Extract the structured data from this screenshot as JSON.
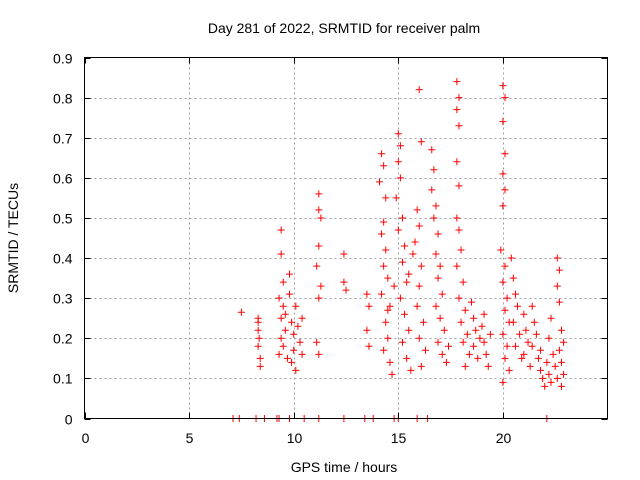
{
  "chart_data": {
    "type": "scatter",
    "title": "Day 281 of 2022, SRMTID for receiver palm",
    "xlabel": "GPS time / hours",
    "ylabel": "SRMTID / TECUs",
    "xlim": [
      0,
      25
    ],
    "ylim": [
      0,
      0.9
    ],
    "x_ticks": [
      0,
      5,
      10,
      15,
      20
    ],
    "y_ticks": [
      0,
      0.1,
      0.2,
      0.3,
      0.4,
      0.5,
      0.6,
      0.7,
      0.8,
      0.9
    ],
    "x_tick_labels": [
      "0",
      "5",
      "10",
      "15",
      "20"
    ],
    "y_tick_labels": [
      "0",
      "0.1",
      "0.2",
      "0.3",
      "0.4",
      "0.5",
      "0.6",
      "0.7",
      "0.8",
      "0.9"
    ],
    "grid": true,
    "marker": "+",
    "color": "#ff0000",
    "series": [
      {
        "name": "SRMTID",
        "points": [
          [
            7.1,
            0.0
          ],
          [
            7.4,
            0.0
          ],
          [
            7.5,
            0.265
          ],
          [
            8.2,
            0.0
          ],
          [
            8.6,
            0.0
          ],
          [
            8.3,
            0.25
          ],
          [
            8.3,
            0.22
          ],
          [
            8.3,
            0.18
          ],
          [
            8.4,
            0.15
          ],
          [
            8.35,
            0.2
          ],
          [
            8.4,
            0.13
          ],
          [
            8.3,
            0.24
          ],
          [
            9.2,
            0.0
          ],
          [
            9.3,
            0.0
          ],
          [
            9.8,
            0.0
          ],
          [
            10.5,
            0.0
          ],
          [
            11.2,
            0.0
          ],
          [
            12.4,
            0.0
          ],
          [
            13.4,
            0.0
          ],
          [
            13.8,
            0.0
          ],
          [
            14.8,
            0.0
          ],
          [
            15.0,
            0.0
          ],
          [
            15.9,
            0.0
          ],
          [
            16.4,
            0.0
          ],
          [
            22.1,
            0.0
          ],
          [
            9.4,
            0.47
          ],
          [
            9.4,
            0.41
          ],
          [
            9.5,
            0.34
          ],
          [
            9.3,
            0.3
          ],
          [
            9.5,
            0.28
          ],
          [
            9.4,
            0.25
          ],
          [
            9.6,
            0.22
          ],
          [
            9.4,
            0.2
          ],
          [
            9.5,
            0.18
          ],
          [
            9.3,
            0.16
          ],
          [
            9.7,
            0.15
          ],
          [
            9.6,
            0.26
          ],
          [
            9.8,
            0.31
          ],
          [
            9.9,
            0.24
          ],
          [
            10.0,
            0.21
          ],
          [
            10.0,
            0.17
          ],
          [
            9.9,
            0.14
          ],
          [
            10.1,
            0.12
          ],
          [
            10.2,
            0.23
          ],
          [
            10.3,
            0.19
          ],
          [
            10.1,
            0.28
          ],
          [
            9.8,
            0.36
          ],
          [
            10.4,
            0.25
          ],
          [
            10.4,
            0.16
          ],
          [
            11.2,
            0.56
          ],
          [
            11.2,
            0.52
          ],
          [
            11.3,
            0.5
          ],
          [
            11.2,
            0.43
          ],
          [
            11.1,
            0.38
          ],
          [
            11.3,
            0.33
          ],
          [
            11.2,
            0.3
          ],
          [
            11.1,
            0.19
          ],
          [
            11.2,
            0.16
          ],
          [
            12.4,
            0.41
          ],
          [
            12.4,
            0.34
          ],
          [
            12.5,
            0.32
          ],
          [
            13.5,
            0.31
          ],
          [
            13.6,
            0.28
          ],
          [
            13.5,
            0.22
          ],
          [
            13.6,
            0.18
          ],
          [
            14.2,
            0.66
          ],
          [
            14.3,
            0.63
          ],
          [
            14.1,
            0.59
          ],
          [
            14.4,
            0.55
          ],
          [
            14.3,
            0.49
          ],
          [
            14.2,
            0.46
          ],
          [
            14.4,
            0.42
          ],
          [
            14.3,
            0.38
          ],
          [
            14.5,
            0.35
          ],
          [
            14.2,
            0.31
          ],
          [
            14.6,
            0.28
          ],
          [
            14.4,
            0.24
          ],
          [
            14.5,
            0.2
          ],
          [
            14.3,
            0.17
          ],
          [
            14.6,
            0.14
          ],
          [
            14.7,
            0.11
          ],
          [
            14.5,
            0.27
          ],
          [
            14.8,
            0.33
          ],
          [
            15.0,
            0.71
          ],
          [
            15.1,
            0.68
          ],
          [
            15.0,
            0.64
          ],
          [
            15.1,
            0.6
          ],
          [
            14.9,
            0.55
          ],
          [
            15.2,
            0.5
          ],
          [
            15.0,
            0.47
          ],
          [
            15.3,
            0.43
          ],
          [
            15.2,
            0.39
          ],
          [
            15.4,
            0.34
          ],
          [
            15.1,
            0.3
          ],
          [
            15.3,
            0.26
          ],
          [
            15.5,
            0.22
          ],
          [
            15.2,
            0.19
          ],
          [
            15.4,
            0.15
          ],
          [
            15.6,
            0.12
          ],
          [
            15.5,
            0.36
          ],
          [
            15.7,
            0.41
          ],
          [
            15.9,
            0.52
          ],
          [
            16.0,
            0.48
          ],
          [
            15.8,
            0.44
          ],
          [
            16.1,
            0.38
          ],
          [
            16.0,
            0.33
          ],
          [
            15.9,
            0.28
          ],
          [
            16.2,
            0.24
          ],
          [
            16.0,
            0.2
          ],
          [
            16.3,
            0.17
          ],
          [
            16.1,
            0.13
          ],
          [
            16.0,
            0.82
          ],
          [
            16.1,
            0.69
          ],
          [
            16.6,
            0.67
          ],
          [
            16.7,
            0.62
          ],
          [
            16.6,
            0.57
          ],
          [
            16.8,
            0.53
          ],
          [
            16.7,
            0.5
          ],
          [
            16.9,
            0.46
          ],
          [
            16.8,
            0.41
          ],
          [
            17.0,
            0.38
          ],
          [
            16.9,
            0.35
          ],
          [
            17.1,
            0.31
          ],
          [
            16.8,
            0.28
          ],
          [
            17.0,
            0.25
          ],
          [
            17.2,
            0.22
          ],
          [
            16.9,
            0.19
          ],
          [
            17.1,
            0.16
          ],
          [
            17.3,
            0.14
          ],
          [
            17.4,
            0.18
          ],
          [
            17.8,
            0.84
          ],
          [
            17.9,
            0.8
          ],
          [
            17.8,
            0.77
          ],
          [
            17.9,
            0.73
          ],
          [
            17.8,
            0.64
          ],
          [
            17.9,
            0.58
          ],
          [
            17.8,
            0.5
          ],
          [
            17.9,
            0.47
          ],
          [
            18.0,
            0.42
          ],
          [
            17.8,
            0.38
          ],
          [
            18.1,
            0.34
          ],
          [
            17.9,
            0.3
          ],
          [
            18.2,
            0.27
          ],
          [
            18.0,
            0.24
          ],
          [
            18.3,
            0.21
          ],
          [
            18.1,
            0.19
          ],
          [
            18.4,
            0.16
          ],
          [
            18.2,
            0.13
          ],
          [
            18.5,
            0.29
          ],
          [
            18.6,
            0.25
          ],
          [
            18.7,
            0.22
          ],
          [
            18.6,
            0.18
          ],
          [
            18.8,
            0.15
          ],
          [
            18.9,
            0.2
          ],
          [
            19.0,
            0.23
          ],
          [
            19.1,
            0.19
          ],
          [
            19.2,
            0.16
          ],
          [
            19.3,
            0.13
          ],
          [
            19.1,
            0.26
          ],
          [
            19.4,
            0.21
          ],
          [
            20.0,
            0.83
          ],
          [
            20.1,
            0.8
          ],
          [
            20.0,
            0.74
          ],
          [
            20.1,
            0.66
          ],
          [
            20.0,
            0.61
          ],
          [
            20.1,
            0.57
          ],
          [
            20.0,
            0.53
          ],
          [
            19.9,
            0.42
          ],
          [
            20.1,
            0.38
          ],
          [
            20.0,
            0.34
          ],
          [
            20.2,
            0.3
          ],
          [
            20.1,
            0.27
          ],
          [
            20.3,
            0.24
          ],
          [
            20.0,
            0.21
          ],
          [
            20.2,
            0.18
          ],
          [
            20.1,
            0.15
          ],
          [
            20.3,
            0.12
          ],
          [
            20.0,
            0.09
          ],
          [
            20.4,
            0.4
          ],
          [
            20.5,
            0.35
          ],
          [
            20.6,
            0.31
          ],
          [
            20.7,
            0.28
          ],
          [
            20.5,
            0.24
          ],
          [
            20.8,
            0.21
          ],
          [
            20.6,
            0.18
          ],
          [
            20.9,
            0.15
          ],
          [
            21.0,
            0.26
          ],
          [
            21.1,
            0.22
          ],
          [
            21.2,
            0.19
          ],
          [
            21.0,
            0.16
          ],
          [
            21.3,
            0.13
          ],
          [
            21.4,
            0.28
          ],
          [
            21.5,
            0.24
          ],
          [
            21.6,
            0.21
          ],
          [
            21.4,
            0.18
          ],
          [
            21.7,
            0.15
          ],
          [
            21.8,
            0.12
          ],
          [
            21.9,
            0.1
          ],
          [
            22.0,
            0.08
          ],
          [
            21.8,
            0.17
          ],
          [
            22.1,
            0.14
          ],
          [
            22.2,
            0.11
          ],
          [
            22.3,
            0.09
          ],
          [
            22.2,
            0.2
          ],
          [
            22.4,
            0.16
          ],
          [
            22.5,
            0.13
          ],
          [
            22.3,
            0.25
          ],
          [
            22.6,
            0.1
          ],
          [
            22.6,
            0.4
          ],
          [
            22.7,
            0.37
          ],
          [
            22.6,
            0.33
          ],
          [
            22.7,
            0.29
          ],
          [
            22.8,
            0.22
          ],
          [
            22.7,
            0.17
          ],
          [
            22.8,
            0.14
          ],
          [
            22.9,
            0.11
          ],
          [
            22.8,
            0.08
          ],
          [
            22.9,
            0.19
          ]
        ]
      }
    ]
  }
}
